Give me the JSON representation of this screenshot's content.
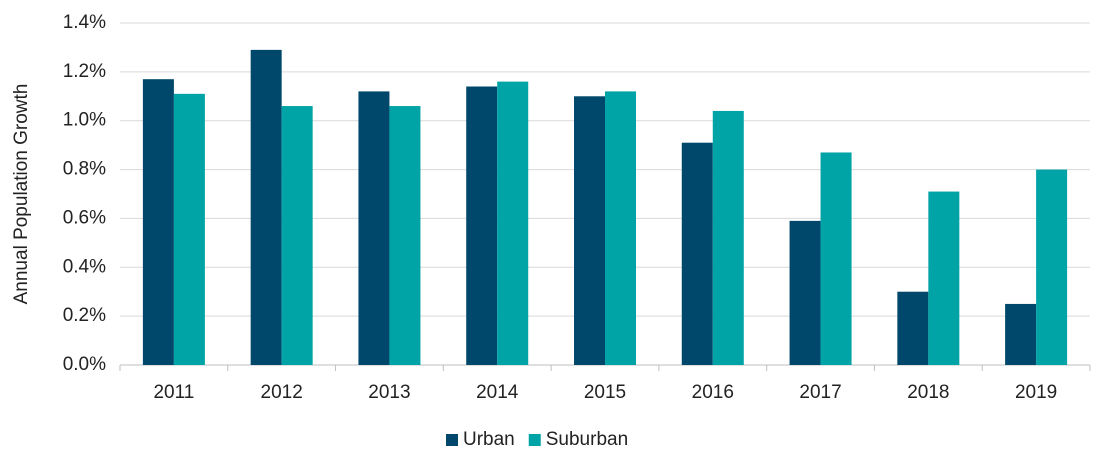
{
  "chart_data": {
    "type": "bar",
    "y_label": "Annual Population Growth",
    "categories": [
      "2011",
      "2012",
      "2013",
      "2014",
      "2015",
      "2016",
      "2017",
      "2018",
      "2019"
    ],
    "series": [
      {
        "name": "Urban",
        "color": "#00486b",
        "values": [
          1.17,
          1.29,
          1.12,
          1.14,
          1.1,
          0.91,
          0.59,
          0.3,
          0.25
        ]
      },
      {
        "name": "Suburban",
        "color": "#00a3a6",
        "values": [
          1.11,
          1.06,
          1.06,
          1.16,
          1.12,
          1.04,
          0.87,
          0.71,
          0.8
        ]
      }
    ],
    "ylim": [
      0,
      1.4
    ],
    "yticks": [
      {
        "value": 0,
        "label": "0.0%"
      },
      {
        "value": 0.2,
        "label": "0.2%"
      },
      {
        "value": 0.4,
        "label": "0.4%"
      },
      {
        "value": 0.6,
        "label": "0.6%"
      },
      {
        "value": 0.8,
        "label": "0.8%"
      },
      {
        "value": 1.0,
        "label": "1.0%"
      },
      {
        "value": 1.2,
        "label": "1.2%"
      },
      {
        "value": 1.4,
        "label": "1.4%"
      }
    ],
    "grid": true,
    "legend": "bottom"
  }
}
